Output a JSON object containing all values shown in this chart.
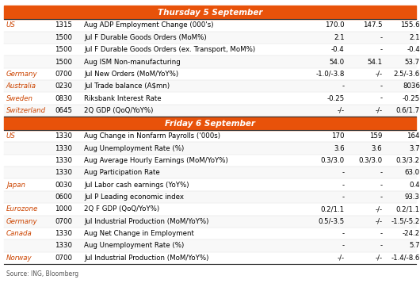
{
  "title1": "Thursday 5 September",
  "title2": "Friday 6 September",
  "header_bg": "#E8520A",
  "header_text_color": "#FFFFFF",
  "text_color": "#000000",
  "source_text": "Source: ING, Bloomberg",
  "thursday_rows": [
    [
      "US",
      "1315",
      "Aug ADP Employment Change (000's)",
      "170.0",
      "147.5",
      "155.6"
    ],
    [
      "",
      "1500",
      "Jul F Durable Goods Orders (MoM%)",
      "2.1",
      "-",
      "2.1"
    ],
    [
      "",
      "1500",
      "Jul F Durable Goods Orders (ex. Transport, MoM%)",
      "-0.4",
      "-",
      "-0.4"
    ],
    [
      "",
      "1500",
      "Aug ISM Non-manufacturing",
      "54.0",
      "54.1",
      "53.7"
    ],
    [
      "Germany",
      "0700",
      "Jul New Orders (MoM/YoY%)",
      "-1.0/-3.8",
      "-/-",
      "2.5/-3.6"
    ],
    [
      "Australia",
      "0230",
      "Jul Trade balance (A$mn)",
      "-",
      "-",
      "8036"
    ],
    [
      "Sweden",
      "0830",
      "Riksbank Interest Rate",
      "-0.25",
      "-",
      "-0.25"
    ],
    [
      "Switzerland",
      "0645",
      "2Q GDP (QoQ/YoY%)",
      "-/-",
      "-/-",
      "0.6/1.7"
    ]
  ],
  "friday_rows": [
    [
      "US",
      "1330",
      "Aug Change in Nonfarm Payrolls ('000s)",
      "170",
      "159",
      "164"
    ],
    [
      "",
      "1330",
      "Aug Unemployment Rate (%)",
      "3.6",
      "3.6",
      "3.7"
    ],
    [
      "",
      "1330",
      "Aug Average Hourly Earnings (MoM/YoY%)",
      "0.3/3.0",
      "0.3/3.0",
      "0.3/3.2"
    ],
    [
      "",
      "1330",
      "Aug Participation Rate",
      "-",
      "-",
      "63.0"
    ],
    [
      "Japan",
      "0030",
      "Jul Labor cash earnings (YoY%)",
      "-",
      "-",
      "0.4"
    ],
    [
      "",
      "0600",
      "Jul P Leading economic index",
      "-",
      "-",
      "93.3"
    ],
    [
      "Eurozone",
      "1000",
      "2Q F GDP (QoQ/YoY%)",
      "0.2/1.1",
      "-/-",
      "0.2/1.1"
    ],
    [
      "Germany",
      "0700",
      "Jul Industrial Production (MoM/YoY%)",
      "0.5/-3.5",
      "-/-",
      "-1.5/-5.2"
    ],
    [
      "Canada",
      "1330",
      "Aug Net Change in Employment",
      "-",
      "-",
      "-24.2"
    ],
    [
      "",
      "1330",
      "Aug Unemployment Rate (%)",
      "-",
      "-",
      "5.7"
    ],
    [
      "Norway",
      "0700",
      "Jul Industrial Production (MoM/YoY%)",
      "-/-",
      "-/-",
      "-1.4/-8.6"
    ]
  ]
}
